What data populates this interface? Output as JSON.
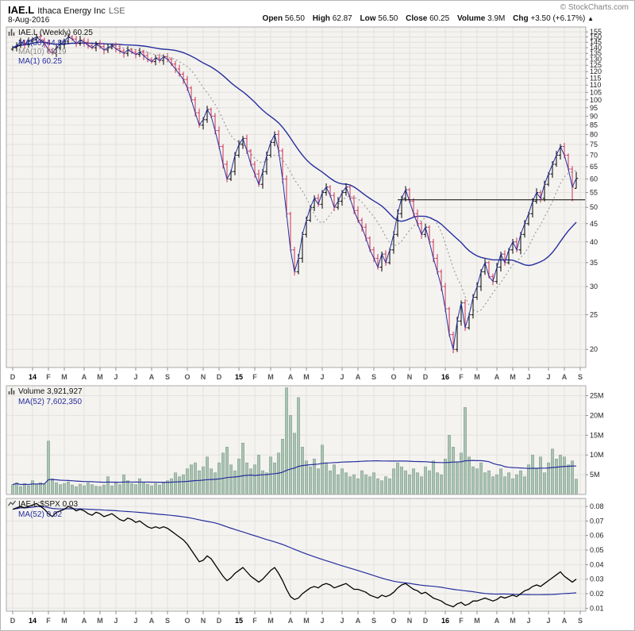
{
  "header": {
    "symbol": "IAE.L",
    "company": "Ithaca Energy Inc",
    "exchange": "LSE",
    "date": "8-Aug-2016",
    "copyright": "© StockCharts.com",
    "quote": {
      "open_label": "Open",
      "open": "56.50",
      "high_label": "High",
      "high": "62.87",
      "low_label": "Low",
      "low": "56.50",
      "close_label": "Close",
      "close": "60.25",
      "volume_label": "Volume",
      "volume": "3.9M",
      "chg_label": "Chg",
      "chg": "+3.50 (+6.17%)",
      "chg_arrow": "▲"
    }
  },
  "legends": {
    "price": {
      "title": "IAE.L (Weekly) 60.25",
      "ma30": "MA(30) 44.80",
      "ma10": "MA(10) 63.19",
      "ma1": "MA(1) 60.25"
    },
    "volume": {
      "title": "Volume 3,921,927",
      "ma52": "MA(52) 7,602,350"
    },
    "ratio": {
      "title": "IAE.L:$SPX 0.03",
      "ma52": "MA(52) 0.02"
    }
  },
  "colors": {
    "navy": "#262f9d",
    "gray_ma": "#9e9e9e",
    "up": "#000000",
    "down": "#cc3355",
    "volume_fill": "#abc3b2",
    "volume_stroke": "#7e9c8b",
    "ratio_line": "#000000",
    "pane_bg": "#f4f3f0",
    "grid": "#e4e2de",
    "pane_border": "#aaaaaa",
    "axis_text": "#222222",
    "month_text": "#555555",
    "year_text": "#000000"
  },
  "chart_data": [
    {
      "type": "ohlc",
      "title": "IAE.L (Weekly)",
      "y_scale": "log",
      "ylim": [
        17.8,
        160
      ],
      "y_ticks": [
        20,
        25,
        30,
        35,
        40,
        45,
        50,
        55,
        60,
        65,
        70,
        75,
        80,
        85,
        90,
        95,
        100,
        105,
        110,
        115,
        120,
        125,
        130,
        135,
        140,
        145,
        150,
        155
      ],
      "x_months": [
        {
          "label": "D",
          "week": 0
        },
        {
          "label": "14",
          "week": 5,
          "year": true
        },
        {
          "label": "F",
          "week": 9
        },
        {
          "label": "M",
          "week": 13
        },
        {
          "label": "A",
          "week": 18
        },
        {
          "label": "M",
          "week": 22
        },
        {
          "label": "J",
          "week": 26
        },
        {
          "label": "J",
          "week": 31
        },
        {
          "label": "A",
          "week": 35
        },
        {
          "label": "S",
          "week": 39
        },
        {
          "label": "O",
          "week": 44
        },
        {
          "label": "N",
          "week": 48
        },
        {
          "label": "D",
          "week": 52
        },
        {
          "label": "15",
          "week": 57,
          "year": true
        },
        {
          "label": "F",
          "week": 61
        },
        {
          "label": "M",
          "week": 65
        },
        {
          "label": "A",
          "week": 70
        },
        {
          "label": "M",
          "week": 74
        },
        {
          "label": "J",
          "week": 78
        },
        {
          "label": "J",
          "week": 83
        },
        {
          "label": "A",
          "week": 87
        },
        {
          "label": "S",
          "week": 91
        },
        {
          "label": "O",
          "week": 96
        },
        {
          "label": "N",
          "week": 100
        },
        {
          "label": "D",
          "week": 104
        },
        {
          "label": "16",
          "week": 109,
          "year": true
        },
        {
          "label": "F",
          "week": 113
        },
        {
          "label": "M",
          "week": 117
        },
        {
          "label": "A",
          "week": 122
        },
        {
          "label": "M",
          "week": 126
        },
        {
          "label": "J",
          "week": 130
        },
        {
          "label": "J",
          "week": 135
        },
        {
          "label": "A",
          "week": 139
        },
        {
          "label": "S",
          "week": 143
        }
      ],
      "close": [
        140,
        142,
        145,
        143,
        146,
        148,
        150,
        147,
        144,
        138,
        135,
        140,
        143,
        146,
        150,
        148,
        144,
        147,
        145,
        142,
        140,
        143,
        141,
        138,
        140,
        142,
        139,
        137,
        135,
        138,
        136,
        134,
        136,
        133,
        130,
        128,
        131,
        129,
        132,
        130,
        126,
        122,
        118,
        114,
        108,
        100,
        92,
        85,
        88,
        94,
        90,
        82,
        74,
        66,
        60,
        63,
        70,
        75,
        78,
        72,
        66,
        62,
        58,
        63,
        70,
        76,
        80,
        72,
        60,
        48,
        38,
        33,
        36,
        42,
        46,
        50,
        53,
        51,
        55,
        57,
        54,
        50,
        52,
        55,
        57,
        53,
        49,
        46,
        44,
        41,
        38,
        36,
        34,
        37,
        35,
        38,
        42,
        48,
        53,
        56,
        52,
        48,
        45,
        42,
        44,
        40,
        36,
        33,
        30,
        26,
        22,
        20,
        24,
        27,
        23,
        25,
        28,
        30,
        33,
        35,
        32,
        31,
        34,
        37,
        35,
        38,
        40,
        38,
        42,
        45,
        48,
        52,
        55,
        53,
        58,
        62,
        66,
        70,
        74,
        70,
        64,
        57,
        60.25
      ],
      "last_bar": {
        "open": 56.5,
        "high": 62.87,
        "low": 56.5,
        "close": 60.25
      },
      "overrides": {
        "open": {
          "142": 56.5
        },
        "high": {
          "142": 62.87
        },
        "low": {
          "141": 52.0,
          "142": 56.5
        }
      },
      "moving_averages": [
        {
          "label": "MA(30)",
          "period": 30,
          "value": 44.8,
          "style": "solid",
          "color": "navy"
        },
        {
          "label": "MA(10)",
          "period": 10,
          "value": 63.19,
          "style": "dotted",
          "color": "gray"
        },
        {
          "label": "MA(1)",
          "period": 1,
          "value": 60.25,
          "style": "solid",
          "color": "navy"
        }
      ],
      "annotation_hline": {
        "price": 52.5,
        "from_week": 97
      }
    },
    {
      "type": "bar",
      "title": "Volume",
      "unit": "millions",
      "ylim": [
        0,
        27.5
      ],
      "y_ticks": [
        5,
        10,
        15,
        20,
        25
      ],
      "y_tick_labels": [
        "5M",
        "10M",
        "15M",
        "20M",
        "25M"
      ],
      "ma": {
        "label": "MA(52)",
        "period": 52,
        "value": 7602350
      },
      "values": [
        2.5,
        3.0,
        2.0,
        2.8,
        2.2,
        3.5,
        2.5,
        3.0,
        2.6,
        13.5,
        4.0,
        3.0,
        2.5,
        2.8,
        3.2,
        2.4,
        2.0,
        2.6,
        2.2,
        3.0,
        2.5,
        2.1,
        2.0,
        2.4,
        4.5,
        2.2,
        3.0,
        2.5,
        5.0,
        3.5,
        2.8,
        2.5,
        4.0,
        3.0,
        2.6,
        2.2,
        2.8,
        2.4,
        3.0,
        3.5,
        4.0,
        5.5,
        4.5,
        5.0,
        6.5,
        7.5,
        8.0,
        6.0,
        7.0,
        9.5,
        6.5,
        5.5,
        8.0,
        10.5,
        12.0,
        7.5,
        6.0,
        9.0,
        13.0,
        8.0,
        6.5,
        7.5,
        10.0,
        6.0,
        5.5,
        9.5,
        8.0,
        10.5,
        14.0,
        27.0,
        20.0,
        15.5,
        24.5,
        12.0,
        8.5,
        7.0,
        9.0,
        6.5,
        12.5,
        8.0,
        6.0,
        7.5,
        5.0,
        6.5,
        5.5,
        4.5,
        5.0,
        4.0,
        6.0,
        5.0,
        4.5,
        5.5,
        4.0,
        3.5,
        4.5,
        4.0,
        6.5,
        8.0,
        7.0,
        6.0,
        5.0,
        6.5,
        5.5,
        4.5,
        7.0,
        6.0,
        8.5,
        5.5,
        5.0,
        9.0,
        15.0,
        12.0,
        8.0,
        10.5,
        22.0,
        9.5,
        7.0,
        6.5,
        8.0,
        5.5,
        6.0,
        4.5,
        5.0,
        6.5,
        4.5,
        5.5,
        4.0,
        5.0,
        6.0,
        4.5,
        7.5,
        10.0,
        6.5,
        9.5,
        5.5,
        8.0,
        11.5,
        9.0,
        10.0,
        9.5,
        7.5,
        8.5,
        3.9
      ]
    },
    {
      "type": "line",
      "title": "IAE.L:$SPX",
      "ylim": [
        0.008,
        0.0855
      ],
      "y_ticks": [
        0.01,
        0.02,
        0.03,
        0.04,
        0.05,
        0.06,
        0.07,
        0.08
      ],
      "y_tick_labels": [
        "0.01",
        "0.02",
        "0.03",
        "0.04",
        "0.05",
        "0.06",
        "0.07",
        "0.08"
      ],
      "ma": {
        "label": "MA(52)",
        "period": 52,
        "value": 0.02
      },
      "values": [
        0.078,
        0.079,
        0.08,
        0.079,
        0.08,
        0.081,
        0.082,
        0.08,
        0.078,
        0.075,
        0.073,
        0.076,
        0.077,
        0.078,
        0.08,
        0.079,
        0.077,
        0.078,
        0.077,
        0.075,
        0.074,
        0.076,
        0.075,
        0.073,
        0.074,
        0.075,
        0.073,
        0.071,
        0.07,
        0.072,
        0.071,
        0.069,
        0.07,
        0.068,
        0.066,
        0.065,
        0.066,
        0.065,
        0.066,
        0.065,
        0.063,
        0.061,
        0.059,
        0.057,
        0.054,
        0.05,
        0.046,
        0.042,
        0.043,
        0.046,
        0.044,
        0.04,
        0.036,
        0.032,
        0.029,
        0.031,
        0.034,
        0.036,
        0.038,
        0.035,
        0.032,
        0.03,
        0.028,
        0.03,
        0.033,
        0.036,
        0.038,
        0.034,
        0.029,
        0.023,
        0.018,
        0.016,
        0.017,
        0.02,
        0.022,
        0.024,
        0.025,
        0.024,
        0.026,
        0.027,
        0.026,
        0.024,
        0.025,
        0.026,
        0.027,
        0.025,
        0.023,
        0.023,
        0.022,
        0.021,
        0.019,
        0.018,
        0.017,
        0.019,
        0.018,
        0.019,
        0.021,
        0.024,
        0.026,
        0.027,
        0.025,
        0.023,
        0.022,
        0.02,
        0.021,
        0.019,
        0.017,
        0.016,
        0.015,
        0.013,
        0.012,
        0.011,
        0.013,
        0.014,
        0.012,
        0.013,
        0.015,
        0.015,
        0.016,
        0.017,
        0.016,
        0.015,
        0.016,
        0.018,
        0.017,
        0.018,
        0.019,
        0.018,
        0.02,
        0.022,
        0.023,
        0.025,
        0.026,
        0.025,
        0.027,
        0.029,
        0.031,
        0.033,
        0.035,
        0.032,
        0.03,
        0.028,
        0.03
      ]
    }
  ]
}
